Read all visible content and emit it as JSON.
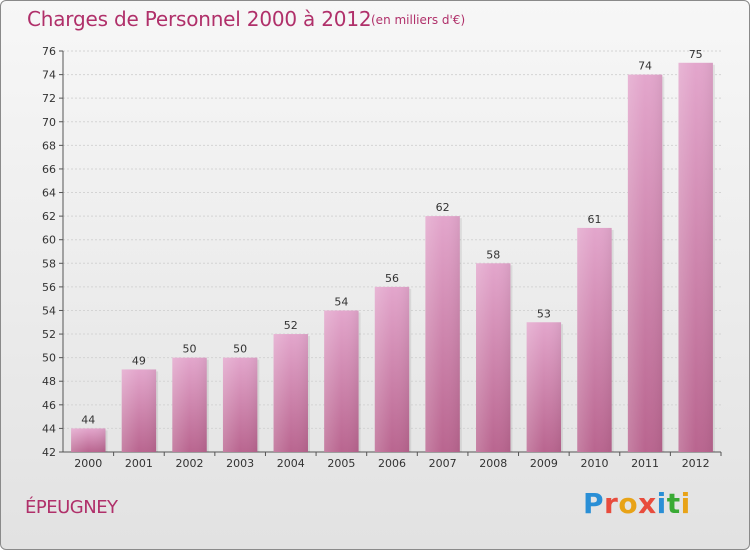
{
  "header": {
    "title": "Charges de Personnel 2000 à 2012",
    "subtitle": "(en milliers d'€)"
  },
  "footer": {
    "place": "ÉPEUGNEY",
    "logo_letters": [
      "P",
      "r",
      "o",
      "x",
      "i",
      "t",
      "i"
    ]
  },
  "colors": {
    "title": "#b0306a",
    "bar_top": "#e3a6cc",
    "bar_bottom": "#b9658f"
  },
  "chart_data": {
    "type": "bar",
    "title": "Charges de Personnel 2000 à 2012",
    "subtitle": "(en milliers d'€)",
    "categories": [
      "2000",
      "2001",
      "2002",
      "2003",
      "2004",
      "2005",
      "2006",
      "2007",
      "2008",
      "2009",
      "2010",
      "2011",
      "2012"
    ],
    "values": [
      44,
      49,
      50,
      50,
      52,
      54,
      56,
      62,
      58,
      53,
      61,
      74,
      75
    ],
    "ylim": [
      42,
      76
    ],
    "yticks": [
      42,
      44,
      46,
      48,
      50,
      52,
      54,
      56,
      58,
      60,
      62,
      64,
      66,
      68,
      70,
      72,
      74,
      76
    ],
    "grid": true,
    "show_values": true
  }
}
